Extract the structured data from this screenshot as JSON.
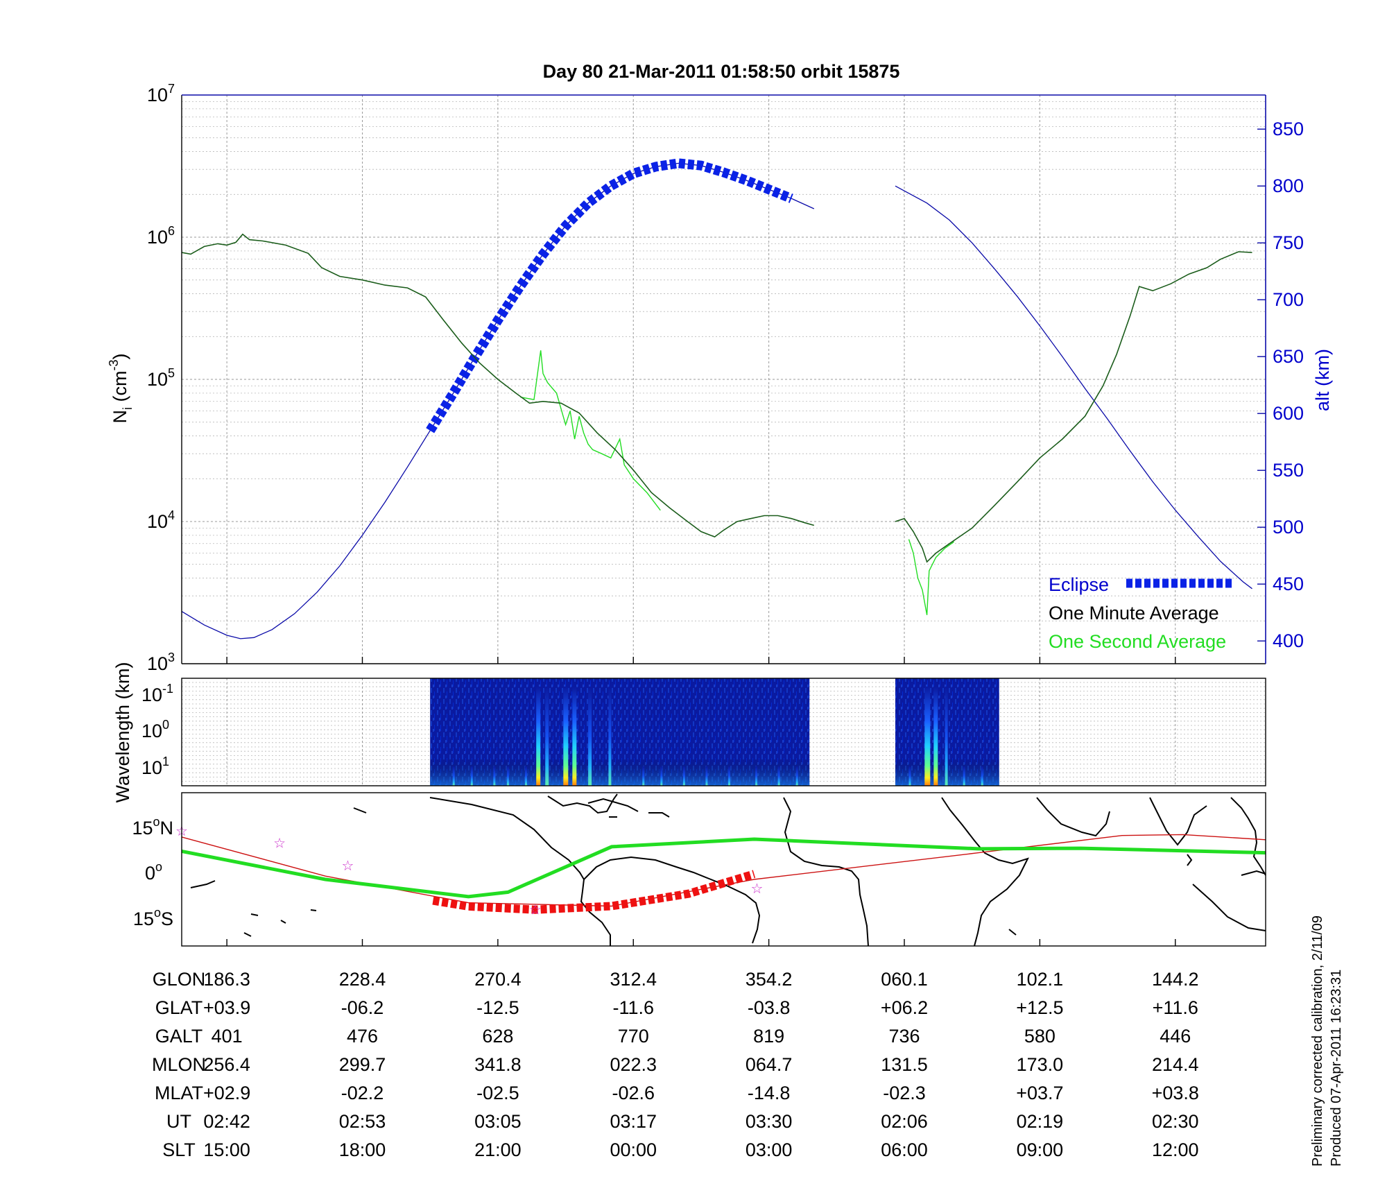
{
  "title": "Day 80  21-Mar-2011 01:58:50   orbit 15875",
  "colors": {
    "ion_minute": "#1a5c1a",
    "ion_second": "#22dd22",
    "altitude": "#0a0aa8",
    "eclipse": "#0a22e6",
    "eclipse_map": "#ee1111",
    "track_magnetic": "#22dd22",
    "track_geographic": "#cc1111",
    "stars": "#cc33cc"
  },
  "panel1": {
    "ylabel": "N",
    "ylabel_sub": "i",
    "ylabel_unit_pre": " (cm",
    "ylabel_unit_sup": "-3",
    "ylabel_unit_post": ")",
    "ytick_base": "10",
    "ytick_exps": [
      "3",
      "4",
      "5",
      "6",
      "7"
    ],
    "y2label": "alt (km)",
    "y2ticks": [
      "400",
      "450",
      "500",
      "550",
      "600",
      "650",
      "700",
      "750",
      "800",
      "850"
    ],
    "legend": {
      "eclipse": "Eclipse",
      "minute": "One Minute Average",
      "second": "One Second Average"
    }
  },
  "panel2": {
    "ylabel": "Wavelength (km)",
    "ytick_base": "10",
    "ytick_exps": [
      "-1",
      "0",
      "1"
    ]
  },
  "panel3": {
    "ylabels": [
      {
        "deg": "15",
        "hem": "N"
      },
      {
        "deg": "0",
        "hem": ""
      },
      {
        "deg": "15",
        "hem": "S"
      }
    ],
    "deg_mark": "o"
  },
  "table": {
    "rows": [
      {
        "label": "GLON",
        "values": [
          "186.3",
          "228.4",
          "270.4",
          "312.4",
          "354.2",
          "060.1",
          "102.1",
          "144.2"
        ]
      },
      {
        "label": "GLAT",
        "values": [
          "+03.9",
          "-06.2",
          "-12.5",
          "-11.6",
          "-03.8",
          "+06.2",
          "+12.5",
          "+11.6"
        ]
      },
      {
        "label": "GALT",
        "values": [
          "401",
          "476",
          "628",
          "770",
          "819",
          "736",
          "580",
          "446"
        ]
      },
      {
        "label": "MLON",
        "values": [
          "256.4",
          "299.7",
          "341.8",
          "022.3",
          "064.7",
          "131.5",
          "173.0",
          "214.4"
        ]
      },
      {
        "label": "MLAT",
        "values": [
          "+02.9",
          "-02.2",
          "-02.5",
          "-02.6",
          "-14.8",
          "-02.3",
          "+03.7",
          "+03.8"
        ]
      },
      {
        "label": "UT",
        "values": [
          "02:42",
          "02:53",
          "03:05",
          "03:17",
          "03:30",
          "02:06",
          "02:19",
          "02:30"
        ]
      },
      {
        "label": "SLT",
        "values": [
          "15:00",
          "18:00",
          "21:00",
          "00:00",
          "03:00",
          "06:00",
          "09:00",
          "12:00"
        ]
      }
    ]
  },
  "side_note": {
    "line1": "Preliminary corrected calibration, 2/11/09",
    "line2": "Produced 07-Apr-2011 16:23:31"
  },
  "chart_data": {
    "type": "line",
    "x_axis": "SLT",
    "xticks_slt": [
      "15:00",
      "18:00",
      "21:00",
      "00:00",
      "03:00",
      "06:00",
      "09:00",
      "12:00"
    ],
    "y_scale": "log",
    "ylim": [
      1000,
      10000000
    ],
    "y2lim": [
      380,
      880
    ],
    "series": [
      {
        "name": "One Minute Average",
        "axis": "Ni",
        "segments": [
          [
            [
              14.0,
              780000
            ],
            [
              14.2,
              760000
            ],
            [
              14.5,
              860000
            ],
            [
              14.8,
              900000
            ],
            [
              15.0,
              880000
            ],
            [
              15.2,
              920000
            ],
            [
              15.35,
              1050000
            ],
            [
              15.5,
              960000
            ],
            [
              15.8,
              940000
            ],
            [
              16.3,
              880000
            ],
            [
              16.8,
              770000
            ],
            [
              17.1,
              610000
            ],
            [
              17.5,
              530000
            ],
            [
              18.0,
              500000
            ],
            [
              18.5,
              460000
            ],
            [
              19.0,
              440000
            ],
            [
              19.4,
              380000
            ],
            [
              19.8,
              260000
            ],
            [
              20.2,
              180000
            ],
            [
              20.6,
              130000
            ],
            [
              21.0,
              100000
            ],
            [
              21.4,
              80000
            ],
            [
              21.7,
              68000
            ],
            [
              22.0,
              70000
            ],
            [
              22.4,
              68000
            ],
            [
              22.8,
              58000
            ],
            [
              23.2,
              42000
            ],
            [
              23.6,
              32000
            ],
            [
              24.0,
              23000
            ],
            [
              24.4,
              16000
            ],
            [
              24.8,
              12500
            ],
            [
              25.2,
              10000
            ],
            [
              25.5,
              8500
            ],
            [
              25.8,
              7800
            ],
            [
              26.0,
              8700
            ],
            [
              26.3,
              10000
            ],
            [
              26.6,
              10500
            ],
            [
              26.9,
              11000
            ],
            [
              27.2,
              11000
            ],
            [
              27.5,
              10500
            ],
            [
              27.8,
              9800
            ],
            [
              28.0,
              9400
            ]
          ],
          [
            [
              29.8,
              10000
            ],
            [
              30.0,
              10500
            ],
            [
              30.2,
              8500
            ],
            [
              30.4,
              6500
            ],
            [
              30.5,
              5200
            ],
            [
              30.7,
              6000
            ],
            [
              31.0,
              7000
            ],
            [
              31.5,
              9000
            ],
            [
              32.0,
              13000
            ],
            [
              32.5,
              19000
            ],
            [
              33.0,
              28000
            ],
            [
              33.5,
              38000
            ],
            [
              34.0,
              55000
            ],
            [
              34.4,
              90000
            ],
            [
              34.7,
              150000
            ],
            [
              35.0,
              280000
            ],
            [
              35.2,
              450000
            ],
            [
              35.5,
              420000
            ],
            [
              35.9,
              470000
            ],
            [
              36.3,
              550000
            ],
            [
              36.7,
              610000
            ],
            [
              37.0,
              700000
            ],
            [
              37.4,
              790000
            ],
            [
              37.7,
              780000
            ]
          ]
        ]
      },
      {
        "name": "One Second Average",
        "axis": "Ni",
        "segments": [
          [
            [
              21.5,
              75000
            ],
            [
              21.8,
              72000
            ],
            [
              21.95,
              160000
            ],
            [
              22.0,
              110000
            ],
            [
              22.1,
              95000
            ],
            [
              22.3,
              80000
            ],
            [
              22.5,
              48000
            ],
            [
              22.6,
              60000
            ],
            [
              22.7,
              38000
            ],
            [
              22.8,
              55000
            ],
            [
              22.9,
              42000
            ],
            [
              23.0,
              35000
            ],
            [
              23.1,
              32000
            ],
            [
              23.3,
              30000
            ],
            [
              23.5,
              28000
            ],
            [
              23.7,
              38000
            ],
            [
              23.8,
              25000
            ],
            [
              24.0,
              20000
            ],
            [
              24.3,
              16000
            ],
            [
              24.6,
              12000
            ]
          ],
          [
            [
              30.1,
              7500
            ],
            [
              30.2,
              6000
            ],
            [
              30.3,
              4000
            ],
            [
              30.4,
              3300
            ],
            [
              30.5,
              2200
            ],
            [
              30.55,
              4500
            ],
            [
              30.7,
              5600
            ],
            [
              30.9,
              6500
            ],
            [
              31.1,
              7200
            ]
          ]
        ]
      },
      {
        "name": "alt (km)",
        "axis": "alt",
        "segments": [
          [
            [
              14.0,
              426
            ],
            [
              14.5,
              414
            ],
            [
              15.0,
              405
            ],
            [
              15.3,
              402
            ],
            [
              15.6,
              403
            ],
            [
              16.0,
              410
            ],
            [
              16.5,
              424
            ],
            [
              17.0,
              443
            ],
            [
              17.5,
              466
            ],
            [
              18.0,
              493
            ],
            [
              18.5,
              522
            ],
            [
              19.0,
              553
            ],
            [
              19.5,
              585
            ],
            [
              20.0,
              617
            ],
            [
              20.5,
              650
            ],
            [
              21.0,
              682
            ],
            [
              21.5,
              712
            ],
            [
              22.0,
              740
            ],
            [
              22.5,
              765
            ],
            [
              23.0,
              785
            ],
            [
              23.5,
              800
            ],
            [
              24.0,
              811
            ],
            [
              24.5,
              817
            ],
            [
              25.0,
              820
            ],
            [
              25.5,
              818
            ],
            [
              26.0,
              812
            ],
            [
              26.5,
              805
            ],
            [
              27.0,
              797
            ],
            [
              27.5,
              789
            ],
            [
              28.0,
              780
            ]
          ],
          [
            [
              29.8,
              800
            ],
            [
              30.5,
              785
            ],
            [
              31.0,
              770
            ],
            [
              31.5,
              750
            ],
            [
              32.0,
              727
            ],
            [
              32.5,
              703
            ],
            [
              33.0,
              677
            ],
            [
              33.5,
              650
            ],
            [
              34.0,
              622
            ],
            [
              34.5,
              595
            ],
            [
              35.0,
              567
            ],
            [
              35.5,
              540
            ],
            [
              36.0,
              515
            ],
            [
              36.5,
              492
            ],
            [
              37.0,
              470
            ],
            [
              37.5,
              452
            ],
            [
              37.7,
              446
            ]
          ]
        ]
      }
    ],
    "eclipse_slt_range": [
      19.5,
      27.9
    ],
    "spectrogram_slt_ranges": [
      [
        19.5,
        27.9
      ],
      [
        29.8,
        32.1
      ]
    ],
    "ground_track": {
      "magnetic": [
        [
          186.3,
          7
        ],
        [
          228.4,
          -2.3
        ],
        [
          270.4,
          -8
        ],
        [
          282,
          -6.5
        ],
        [
          312.4,
          8.5
        ],
        [
          354.2,
          11
        ],
        [
          420,
          7.8
        ],
        [
          450,
          8
        ],
        [
          504.2,
          6.5
        ]
      ],
      "geographic": [
        [
          186.3,
          11.7
        ],
        [
          228.4,
          -1.2
        ],
        [
          270.4,
          -10
        ],
        [
          312.4,
          -11.1
        ],
        [
          354.2,
          -2.3
        ],
        [
          420,
          6.5
        ],
        [
          462.1,
          12.2
        ],
        [
          480,
          12.5
        ],
        [
          504.2,
          10.8
        ]
      ],
      "eclipse": [
        [
          260,
          -9.3
        ],
        [
          270.4,
          -11.2
        ],
        [
          290,
          -12.3
        ],
        [
          312.4,
          -11.1
        ],
        [
          335,
          -7
        ],
        [
          354.2,
          -0.5
        ]
      ],
      "stars": [
        [
          186.3,
          14
        ],
        [
          215,
          10
        ],
        [
          235,
          2.5
        ],
        [
          290,
          -12
        ],
        [
          355,
          -5
        ]
      ]
    }
  }
}
